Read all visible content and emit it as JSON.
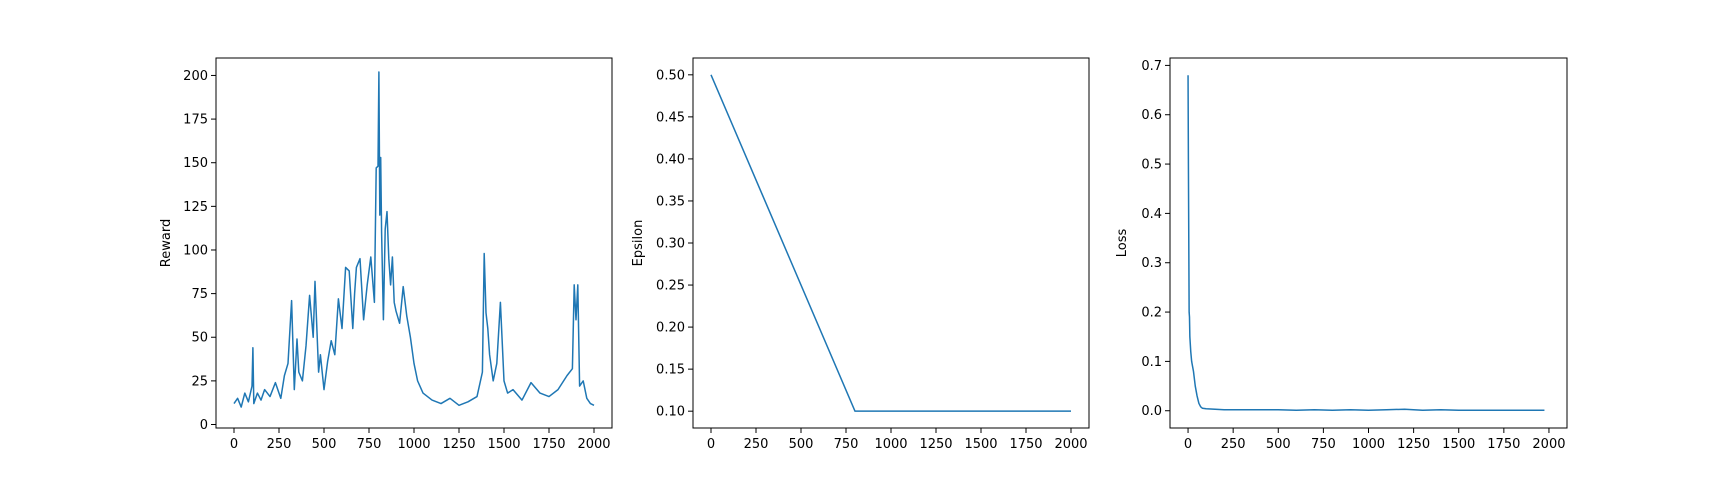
{
  "chart_data": [
    {
      "type": "line",
      "title": "",
      "xlabel": "",
      "ylabel": "Reward",
      "xlim": [
        -100,
        2100
      ],
      "ylim": [
        -2,
        210
      ],
      "xticks": [
        0,
        250,
        500,
        750,
        1000,
        1250,
        1500,
        1750,
        2000
      ],
      "yticks": [
        0,
        25,
        50,
        75,
        100,
        125,
        150,
        175,
        200
      ],
      "color": "#1f77b4",
      "grid": false,
      "legend": "none",
      "series": [
        {
          "x": [
            0,
            20,
            40,
            60,
            80,
            100,
            105,
            110,
            130,
            150,
            170,
            200,
            230,
            260,
            280,
            300,
            320,
            335,
            350,
            360,
            380,
            400,
            420,
            440,
            450,
            470,
            480,
            500,
            520,
            540,
            560,
            580,
            600,
            620,
            640,
            660,
            670,
            680,
            700,
            720,
            740,
            760,
            780,
            790,
            800,
            805,
            810,
            815,
            820,
            830,
            840,
            850,
            860,
            870,
            880,
            890,
            900,
            920,
            940,
            960,
            980,
            1000,
            1020,
            1050,
            1100,
            1150,
            1200,
            1250,
            1300,
            1350,
            1380,
            1390,
            1400,
            1410,
            1420,
            1440,
            1460,
            1480,
            1500,
            1520,
            1550,
            1600,
            1650,
            1700,
            1750,
            1800,
            1850,
            1880,
            1890,
            1900,
            1910,
            1920,
            1940,
            1960,
            1980,
            2000
          ],
          "y": [
            12,
            15,
            10,
            18,
            13,
            22,
            44,
            12,
            18,
            14,
            20,
            16,
            24,
            15,
            28,
            35,
            71,
            20,
            49,
            30,
            25,
            45,
            74,
            50,
            82,
            30,
            40,
            20,
            36,
            48,
            40,
            72,
            55,
            90,
            88,
            55,
            75,
            90,
            95,
            60,
            80,
            96,
            70,
            147,
            148,
            202,
            120,
            153,
            110,
            60,
            112,
            122,
            95,
            80,
            96,
            70,
            65,
            58,
            79,
            62,
            50,
            35,
            25,
            18,
            14,
            12,
            15,
            11,
            13,
            16,
            30,
            98,
            64,
            55,
            40,
            25,
            35,
            70,
            25,
            18,
            20,
            14,
            24,
            18,
            16,
            20,
            28,
            32,
            80,
            60,
            80,
            22,
            25,
            15,
            12,
            11
          ]
        }
      ]
    },
    {
      "type": "line",
      "title": "",
      "xlabel": "",
      "ylabel": "Epsilon",
      "xlim": [
        -100,
        2100
      ],
      "ylim": [
        0.08,
        0.52
      ],
      "xticks": [
        0,
        250,
        500,
        750,
        1000,
        1250,
        1500,
        1750,
        2000
      ],
      "yticks": [
        "0.10",
        "0.15",
        "0.20",
        "0.25",
        "0.30",
        "0.35",
        "0.40",
        "0.45",
        "0.50"
      ],
      "color": "#1f77b4",
      "grid": false,
      "legend": "none",
      "series": [
        {
          "x": [
            0,
            800,
            2000
          ],
          "y": [
            0.5,
            0.1,
            0.1
          ]
        }
      ]
    },
    {
      "type": "line",
      "title": "",
      "xlabel": "",
      "ylabel": "Loss",
      "xlim": [
        -100,
        2100
      ],
      "ylim": [
        -0.035,
        0.715
      ],
      "xticks": [
        0,
        250,
        500,
        750,
        1000,
        1250,
        1500,
        1750,
        2000
      ],
      "yticks": [
        "0.0",
        "0.1",
        "0.2",
        "0.3",
        "0.4",
        "0.5",
        "0.6",
        "0.7"
      ],
      "color": "#1f77b4",
      "grid": false,
      "legend": "none",
      "series": [
        {
          "x": [
            0,
            2,
            4,
            6,
            8,
            10,
            15,
            20,
            25,
            30,
            40,
            50,
            60,
            70,
            80,
            100,
            150,
            200,
            300,
            400,
            500,
            600,
            700,
            800,
            900,
            1000,
            1100,
            1200,
            1250,
            1300,
            1400,
            1500,
            1600,
            1700,
            1800,
            1900,
            1975
          ],
          "y": [
            0.68,
            0.5,
            0.35,
            0.2,
            0.19,
            0.15,
            0.12,
            0.1,
            0.09,
            0.08,
            0.05,
            0.03,
            0.015,
            0.008,
            0.005,
            0.004,
            0.003,
            0.002,
            0.002,
            0.002,
            0.002,
            0.001,
            0.002,
            0.001,
            0.002,
            0.001,
            0.002,
            0.003,
            0.002,
            0.001,
            0.002,
            0.001,
            0.001,
            0.001,
            0.001,
            0.001,
            0.001
          ]
        }
      ]
    }
  ]
}
